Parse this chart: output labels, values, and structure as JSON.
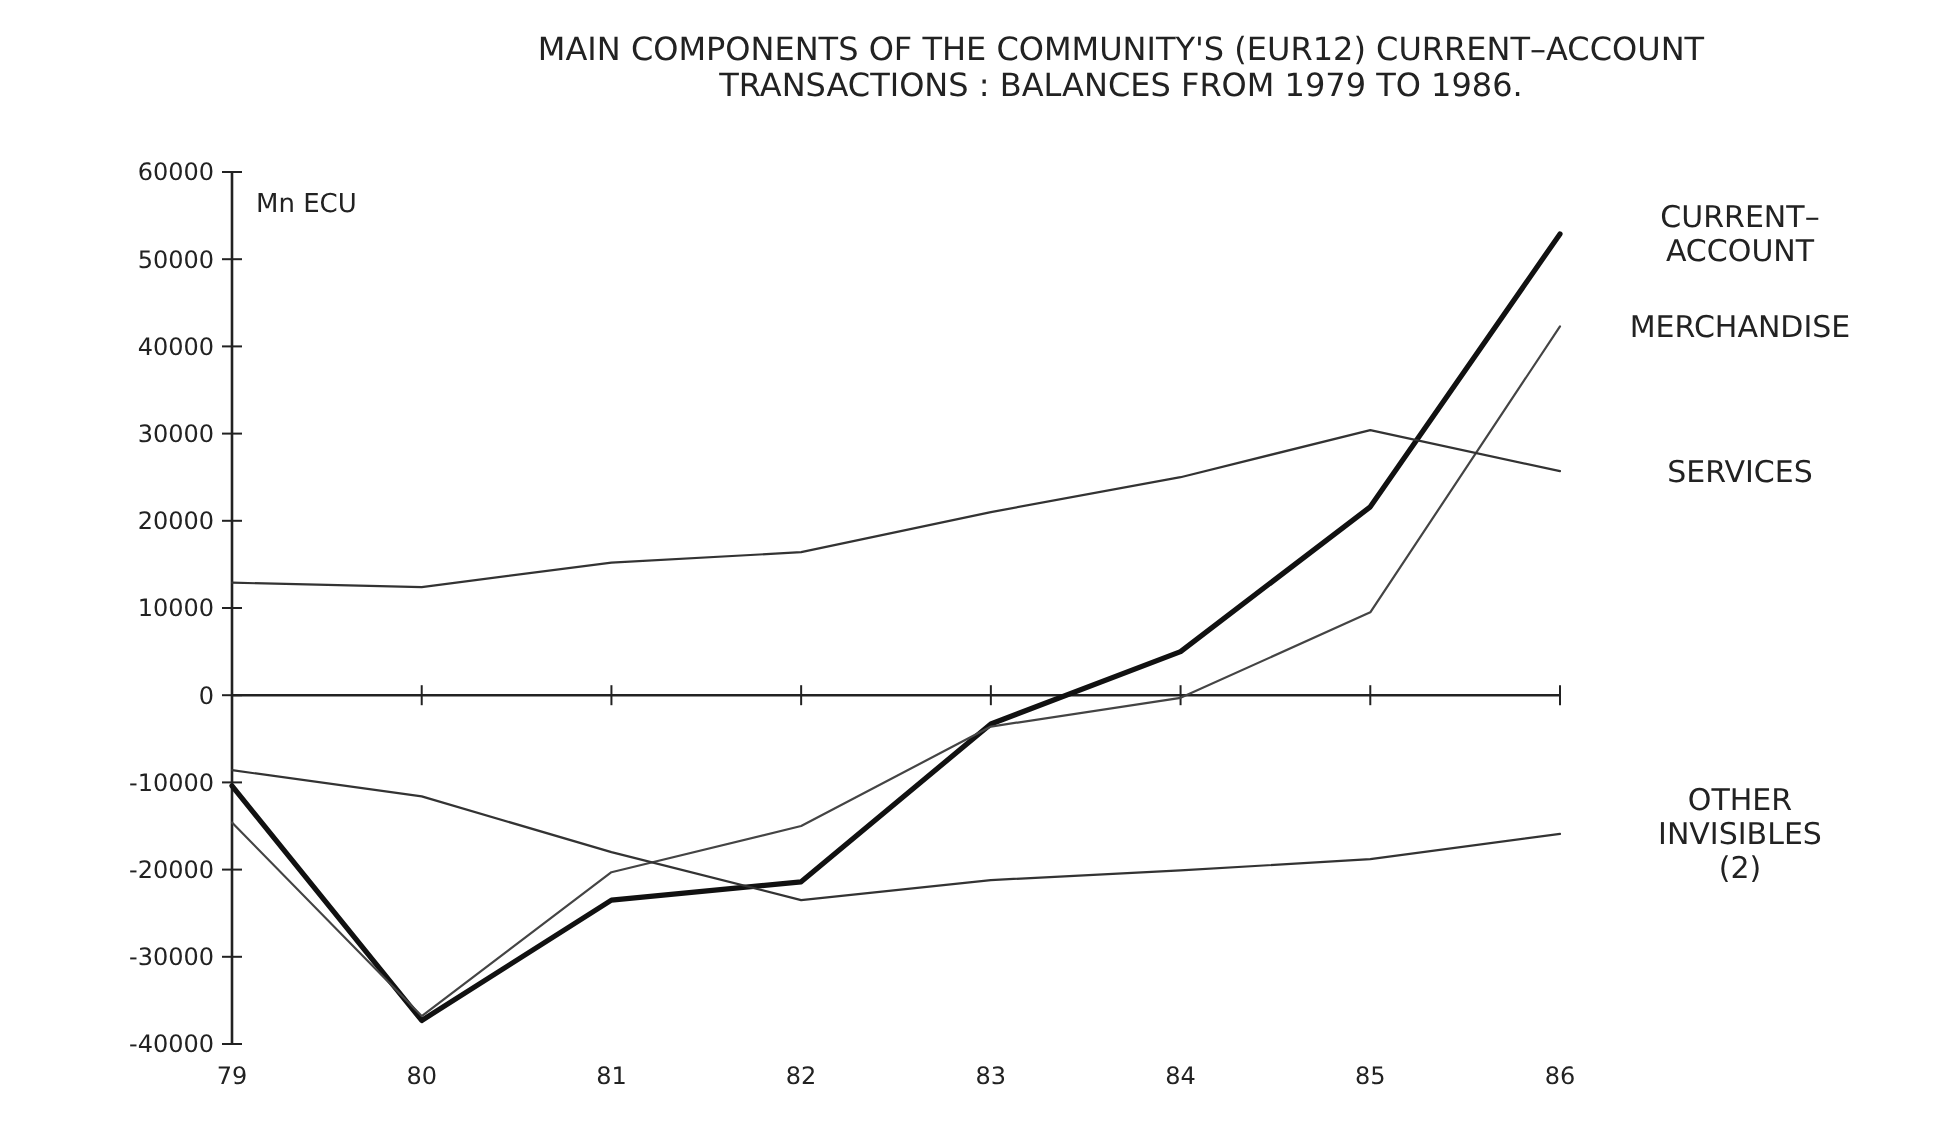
{
  "chart_data": {
    "type": "line",
    "title": "MAIN COMPONENTS OF THE COMMUNITY'S (EUR12) CURRENT–ACCOUNT TRANSACTIONS : BALANCES FROM 1979 TO 1986.",
    "ylabel": "Mn ECU",
    "categories": [
      "79",
      "80",
      "81",
      "82",
      "83",
      "84",
      "85",
      "86"
    ],
    "ylim": [
      -40000,
      60000
    ],
    "yticks": [
      -40000,
      -30000,
      -20000,
      -10000,
      0,
      10000,
      20000,
      30000,
      40000,
      50000,
      60000
    ],
    "marker": "none",
    "line_style": "solid",
    "series": [
      {
        "name": "CURRENT–ACCOUNT",
        "color": "#111111",
        "values": [
          -10400,
          -37300,
          -23500,
          -21400,
          -3300,
          5000,
          21600,
          52900
        ]
      },
      {
        "name": "MERCHANDISE",
        "color": "#444444",
        "values": [
          -14600,
          -36800,
          -20300,
          -15000,
          -3600,
          -300,
          9500,
          42300
        ]
      },
      {
        "name": "SERVICES",
        "color": "#333333",
        "values": [
          12900,
          12400,
          15200,
          16400,
          21000,
          25000,
          30400,
          25700
        ]
      },
      {
        "name": "OTHER INVISIBLES (2)",
        "color": "#333333",
        "values": [
          -8600,
          -11600,
          -18000,
          -23500,
          -21200,
          -20100,
          -18800,
          -15900
        ]
      }
    ]
  }
}
